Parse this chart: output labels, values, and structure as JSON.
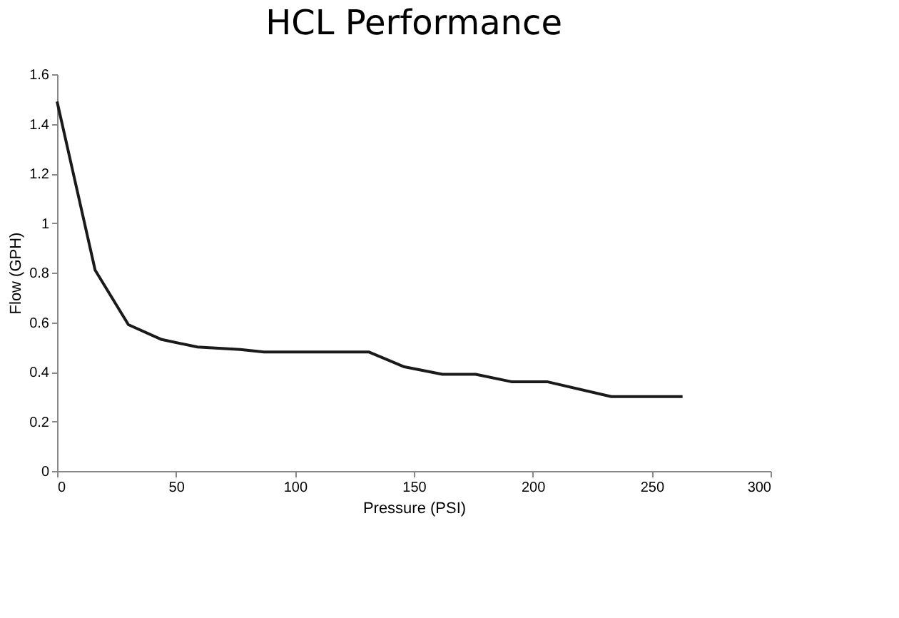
{
  "chart_data": {
    "type": "line",
    "title": "HCL Performance",
    "xlabel": "Pressure (PSI)",
    "ylabel": "Flow (GPH)",
    "x": [
      0,
      16,
      30,
      44,
      59,
      77,
      87,
      131,
      146,
      162,
      176,
      191,
      206,
      233,
      263
    ],
    "series": [
      {
        "color": "#1a1a1a",
        "values": [
          1.49,
          0.81,
          0.59,
          0.53,
          0.5,
          0.49,
          0.48,
          0.48,
          0.42,
          0.39,
          0.39,
          0.36,
          0.36,
          0.3,
          0.3
        ]
      }
    ],
    "xlim": [
      0,
      300
    ],
    "xticks": [
      0,
      50,
      100,
      150,
      200,
      250,
      300
    ],
    "ylim": [
      0,
      1.6
    ],
    "yticks": [
      0,
      0.2,
      0.4,
      0.6,
      0.8,
      1,
      1.2,
      1.4,
      1.6
    ],
    "grid": false,
    "legend": false,
    "marker": "none",
    "line_style": "solid"
  }
}
